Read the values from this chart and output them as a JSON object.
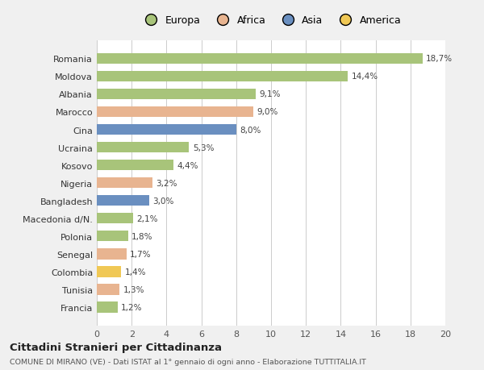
{
  "categories": [
    "Romania",
    "Moldova",
    "Albania",
    "Marocco",
    "Cina",
    "Ucraina",
    "Kosovo",
    "Nigeria",
    "Bangladesh",
    "Macedonia d/N.",
    "Polonia",
    "Senegal",
    "Colombia",
    "Tunisia",
    "Francia"
  ],
  "values": [
    18.7,
    14.4,
    9.1,
    9.0,
    8.0,
    5.3,
    4.4,
    3.2,
    3.0,
    2.1,
    1.8,
    1.7,
    1.4,
    1.3,
    1.2
  ],
  "labels": [
    "18,7%",
    "14,4%",
    "9,1%",
    "9,0%",
    "8,0%",
    "5,3%",
    "4,4%",
    "3,2%",
    "3,0%",
    "2,1%",
    "1,8%",
    "1,7%",
    "1,4%",
    "1,3%",
    "1,2%"
  ],
  "colors": [
    "#a8c47a",
    "#a8c47a",
    "#a8c47a",
    "#e8b490",
    "#6a8fc0",
    "#a8c47a",
    "#a8c47a",
    "#e8b490",
    "#6a8fc0",
    "#a8c47a",
    "#a8c47a",
    "#e8b490",
    "#f0c855",
    "#e8b490",
    "#a8c47a"
  ],
  "legend_labels": [
    "Europa",
    "Africa",
    "Asia",
    "America"
  ],
  "legend_colors": [
    "#a8c47a",
    "#e8b490",
    "#6a8fc0",
    "#f0c855"
  ],
  "title": "Cittadini Stranieri per Cittadinanza",
  "subtitle": "COMUNE DI MIRANO (VE) - Dati ISTAT al 1° gennaio di ogni anno - Elaborazione TUTTITALIA.IT",
  "xlim": [
    0,
    20
  ],
  "xticks": [
    0,
    2,
    4,
    6,
    8,
    10,
    12,
    14,
    16,
    18,
    20
  ],
  "bg_color": "#f0f0f0",
  "plot_bg_color": "#ffffff",
  "grid_color": "#cccccc",
  "bar_height": 0.6
}
